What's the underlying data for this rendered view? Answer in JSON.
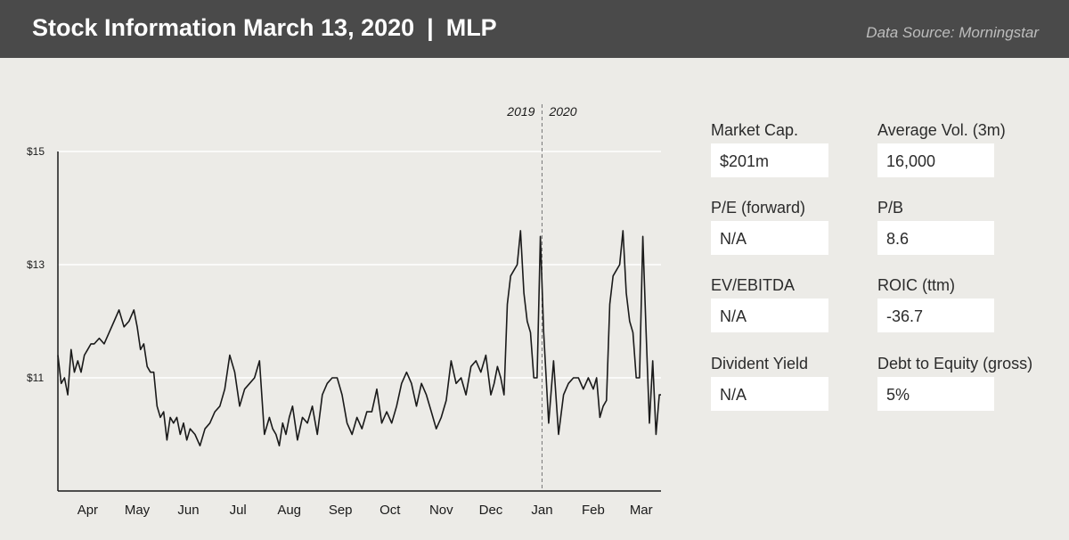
{
  "header": {
    "title": "Stock Information March 13, 2020",
    "separator": "|",
    "ticker": "MLP",
    "source": "Data Source: Morningstar"
  },
  "colors": {
    "header_bg": "#4a4a4a",
    "page_bg": "#ecebe7",
    "line": "#1a1a1a",
    "gridline": "#ffffff",
    "box": "#ffffff"
  },
  "metrics": [
    {
      "label": "Market Cap.",
      "value": "$201m"
    },
    {
      "label": "Average Vol. (3m)",
      "value": "16,000"
    },
    {
      "label": "P/E (forward)",
      "value": "N/A"
    },
    {
      "label": "P/B",
      "value": "8.6"
    },
    {
      "label": "EV/EBITDA",
      "value": "N/A"
    },
    {
      "label": "ROIC (ttm)",
      "value": "-36.7"
    },
    {
      "label": "Divident Yield",
      "value": "N/A"
    },
    {
      "label": "Debt to Equity (gross)",
      "value": "5%"
    }
  ],
  "chart_data": {
    "type": "line",
    "title": "",
    "xlabel": "",
    "ylabel": "",
    "ylim": [
      9,
      15
    ],
    "grid": true,
    "yticks": [
      {
        "value": 15,
        "label": "$15"
      },
      {
        "value": 13,
        "label": "$13"
      },
      {
        "value": 11,
        "label": "$11"
      }
    ],
    "xlim": [
      "2019-03-14",
      "2020-03-13"
    ],
    "xticks": [
      {
        "date": "2019-04-01",
        "label": "Apr"
      },
      {
        "date": "2019-05-01",
        "label": "May"
      },
      {
        "date": "2019-06-01",
        "label": "Jun"
      },
      {
        "date": "2019-07-01",
        "label": "Jul"
      },
      {
        "date": "2019-08-01",
        "label": "Aug"
      },
      {
        "date": "2019-09-01",
        "label": "Sep"
      },
      {
        "date": "2019-10-01",
        "label": "Oct"
      },
      {
        "date": "2019-11-01",
        "label": "Nov"
      },
      {
        "date": "2019-12-01",
        "label": "Dec"
      },
      {
        "date": "2020-01-01",
        "label": "Jan"
      },
      {
        "date": "2020-02-01",
        "label": "Feb"
      },
      {
        "date": "2020-03-01",
        "label": "Mar"
      }
    ],
    "year_divider": {
      "date": "2020-01-01",
      "left_label": "2019",
      "right_label": "2020"
    },
    "series": [
      {
        "x": [
          "2019-03-14",
          "2019-03-16",
          "2019-03-18",
          "2019-03-20",
          "2019-03-22",
          "2019-03-24",
          "2019-03-26",
          "2019-03-28",
          "2019-03-30",
          "2019-04-01",
          "2019-04-03",
          "2019-04-05",
          "2019-04-08",
          "2019-04-11",
          "2019-04-14",
          "2019-04-17",
          "2019-04-20",
          "2019-04-23",
          "2019-04-26",
          "2019-04-29",
          "2019-05-01",
          "2019-05-03",
          "2019-05-05",
          "2019-05-07",
          "2019-05-09",
          "2019-05-11",
          "2019-05-13",
          "2019-05-15",
          "2019-05-17",
          "2019-05-19",
          "2019-05-21",
          "2019-05-23",
          "2019-05-25",
          "2019-05-27",
          "2019-05-29",
          "2019-05-31",
          "2019-06-02",
          "2019-06-05",
          "2019-06-08",
          "2019-06-11",
          "2019-06-14",
          "2019-06-17",
          "2019-06-20",
          "2019-06-23",
          "2019-06-26",
          "2019-06-29",
          "2019-07-02",
          "2019-07-05",
          "2019-07-08",
          "2019-07-11",
          "2019-07-14",
          "2019-07-17",
          "2019-07-20",
          "2019-07-22",
          "2019-07-24",
          "2019-07-26",
          "2019-07-28",
          "2019-07-30",
          "2019-08-01",
          "2019-08-03",
          "2019-08-06",
          "2019-08-09",
          "2019-08-12",
          "2019-08-15",
          "2019-08-18",
          "2019-08-21",
          "2019-08-24",
          "2019-08-27",
          "2019-08-30",
          "2019-09-02",
          "2019-09-05",
          "2019-09-08",
          "2019-09-11",
          "2019-09-14",
          "2019-09-17",
          "2019-09-20",
          "2019-09-23",
          "2019-09-26",
          "2019-09-29",
          "2019-10-02",
          "2019-10-05",
          "2019-10-08",
          "2019-10-11",
          "2019-10-14",
          "2019-10-17",
          "2019-10-20",
          "2019-10-23",
          "2019-10-26",
          "2019-10-29",
          "2019-11-01",
          "2019-11-04",
          "2019-11-07",
          "2019-11-10",
          "2019-11-13",
          "2019-11-16",
          "2019-11-19",
          "2019-11-22",
          "2019-11-25",
          "2019-11-28",
          "2019-12-01",
          "2019-12-03",
          "2019-12-05",
          "2019-12-07",
          "2019-12-09",
          "2019-12-11",
          "2019-12-13",
          "2019-12-15",
          "2019-12-17",
          "2019-12-19",
          "2019-12-21",
          "2019-12-23",
          "2019-12-25",
          "2019-12-27",
          "2019-12-29",
          "2019-12-31",
          "2020-01-02",
          "2020-01-05",
          "2020-01-08",
          "2020-01-11",
          "2020-01-14",
          "2020-01-17",
          "2020-01-20",
          "2020-01-23",
          "2020-01-26",
          "2020-01-29",
          "2020-02-01",
          "2020-02-03",
          "2020-02-05",
          "2020-02-07",
          "2020-02-09",
          "2020-02-11",
          "2020-02-13",
          "2020-02-15",
          "2020-02-17",
          "2020-02-19",
          "2020-02-21",
          "2020-02-23",
          "2020-02-25",
          "2020-02-27",
          "2020-02-29",
          "2020-03-02",
          "2020-03-04",
          "2020-03-06",
          "2020-03-08",
          "2020-03-10",
          "2020-03-12",
          "2020-03-13"
        ],
        "y": [
          11.4,
          10.9,
          11.0,
          10.7,
          11.5,
          11.1,
          11.3,
          11.1,
          11.4,
          11.5,
          11.6,
          11.6,
          11.7,
          11.6,
          11.8,
          12.0,
          12.2,
          11.9,
          12.0,
          12.2,
          11.9,
          11.5,
          11.6,
          11.2,
          11.1,
          11.1,
          10.5,
          10.3,
          10.4,
          9.9,
          10.3,
          10.2,
          10.3,
          10.0,
          10.2,
          9.9,
          10.1,
          10.0,
          9.8,
          10.1,
          10.2,
          10.4,
          10.5,
          10.8,
          11.4,
          11.1,
          10.5,
          10.8,
          10.9,
          11.0,
          11.3,
          10.0,
          10.3,
          10.1,
          10.0,
          9.8,
          10.2,
          10.0,
          10.3,
          10.5,
          9.9,
          10.3,
          10.2,
          10.5,
          10.0,
          10.7,
          10.9,
          11.0,
          11.0,
          10.7,
          10.2,
          10.0,
          10.3,
          10.1,
          10.4,
          10.4,
          10.8,
          10.2,
          10.4,
          10.2,
          10.5,
          10.9,
          11.1,
          10.9,
          10.5,
          10.9,
          10.7,
          10.4,
          10.1,
          10.3,
          10.6,
          11.3,
          10.9,
          11.0,
          10.7,
          11.2,
          11.3,
          11.1,
          11.4,
          10.7,
          10.9,
          11.2,
          11.0,
          10.7,
          12.3,
          12.8,
          12.9,
          13.0,
          13.6,
          12.5,
          12.0,
          11.8,
          11.0,
          11.0,
          13.5,
          11.8,
          10.2,
          11.3,
          10.0,
          10.7,
          10.9,
          11.0,
          11.0,
          10.8,
          11.0,
          10.8,
          11.0,
          10.3,
          10.5,
          10.6,
          12.3,
          12.8,
          12.9,
          13.0,
          13.6,
          12.5,
          12.0,
          11.8,
          11.0,
          11.0,
          13.5,
          11.8,
          10.2,
          11.3,
          10.0,
          10.7,
          10.7
        ]
      }
    ]
  }
}
